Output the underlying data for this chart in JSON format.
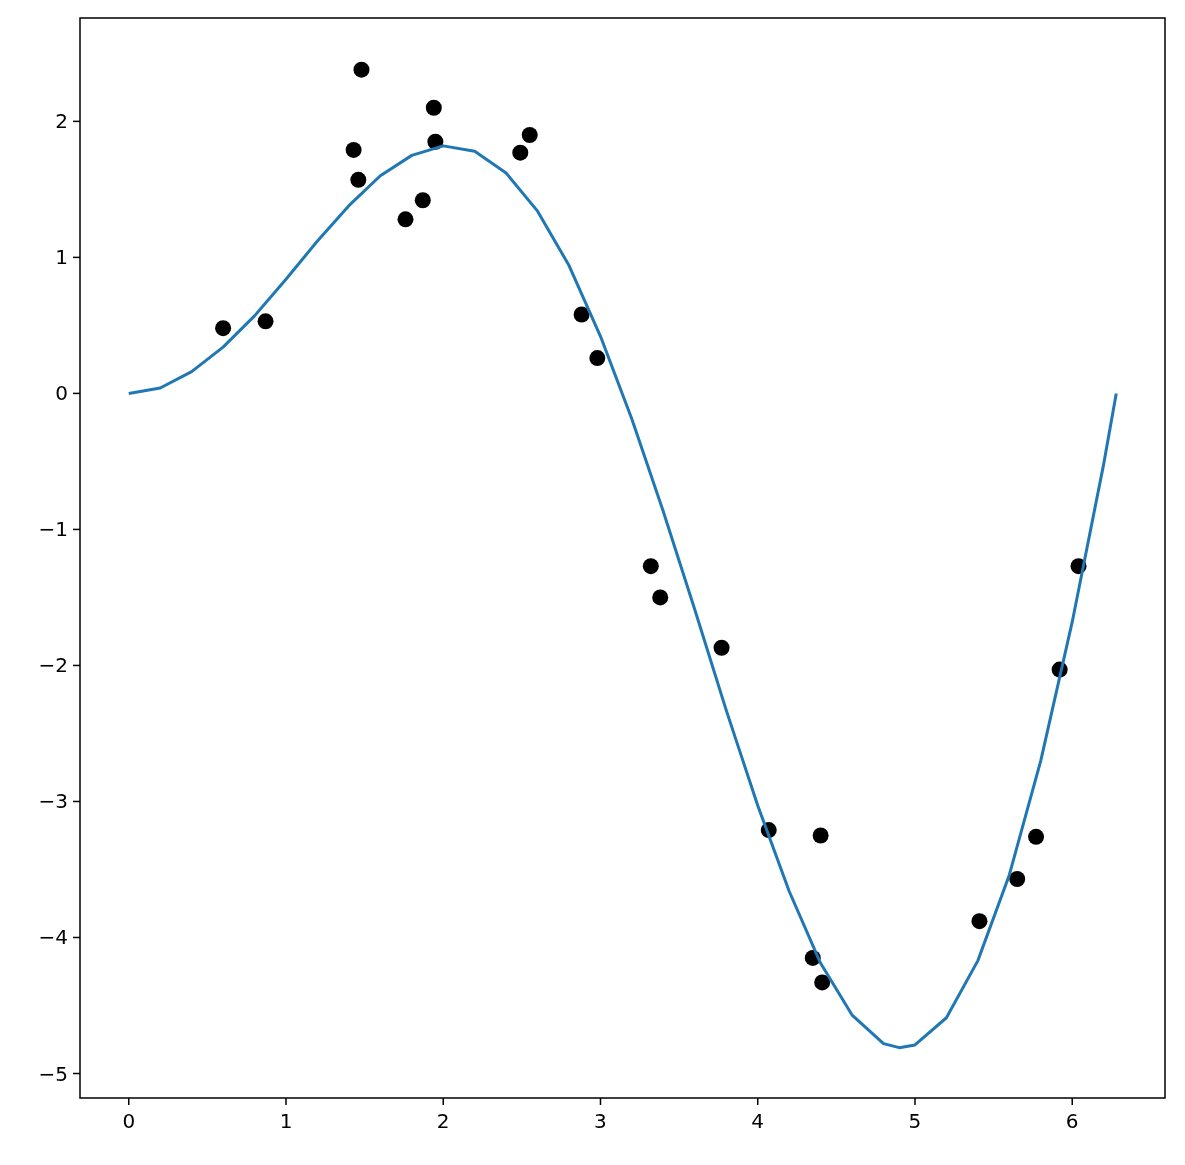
{
  "chart_data": {
    "type": "scatter",
    "xlim": [
      -0.31,
      6.59
    ],
    "ylim": [
      -5.18,
      2.76
    ],
    "xticks": [
      0,
      1,
      2,
      3,
      4,
      5,
      6
    ],
    "yticks": [
      {
        "value": -5,
        "label": "−5"
      },
      {
        "value": -4,
        "label": "−4"
      },
      {
        "value": -3,
        "label": "−3"
      },
      {
        "value": -2,
        "label": "−2"
      },
      {
        "value": -1,
        "label": "−1"
      },
      0,
      1,
      2
    ],
    "grid": false,
    "series": [
      {
        "color": "#000000",
        "marker": "circle",
        "x": [
          0.6,
          0.87,
          1.43,
          1.46,
          1.48,
          1.76,
          1.87,
          1.94,
          1.95,
          2.49,
          2.55,
          2.88,
          2.98,
          3.32,
          3.38,
          3.77,
          4.07,
          4.4,
          4.35,
          4.41,
          5.41,
          5.65,
          5.77,
          5.92,
          6.04
        ],
        "values": [
          0.48,
          0.53,
          1.79,
          1.57,
          2.38,
          1.28,
          1.42,
          2.1,
          1.85,
          1.77,
          1.9,
          0.58,
          0.26,
          -1.27,
          -1.5,
          -1.87,
          -3.21,
          -3.25,
          -4.15,
          -4.33,
          -3.88,
          -3.57,
          -3.26,
          -2.03,
          -1.27
        ]
      },
      {
        "type": "line",
        "color": "#1f77b4",
        "marker": "none",
        "line_style": "solid",
        "x": [
          0,
          0.2,
          0.4,
          0.6,
          0.8,
          1.0,
          1.2,
          1.4,
          1.6,
          1.8,
          2.0,
          2.2,
          2.4,
          2.6,
          2.8,
          3.0,
          3.2,
          3.4,
          3.6,
          3.8,
          4.0,
          4.2,
          4.4,
          4.6,
          4.8,
          4.9,
          5.0,
          5.2,
          5.4,
          5.6,
          5.8,
          6.0,
          6.2,
          6.28
        ],
        "values": [
          0,
          0.04,
          0.16,
          0.34,
          0.57,
          0.84,
          1.12,
          1.38,
          1.6,
          1.75,
          1.82,
          1.78,
          1.62,
          1.34,
          0.94,
          0.42,
          -0.19,
          -0.87,
          -1.59,
          -2.33,
          -3.03,
          -3.66,
          -4.19,
          -4.57,
          -4.78,
          -4.81,
          -4.79,
          -4.59,
          -4.17,
          -3.54,
          -2.7,
          -1.68,
          -0.52,
          0
        ]
      }
    ]
  }
}
